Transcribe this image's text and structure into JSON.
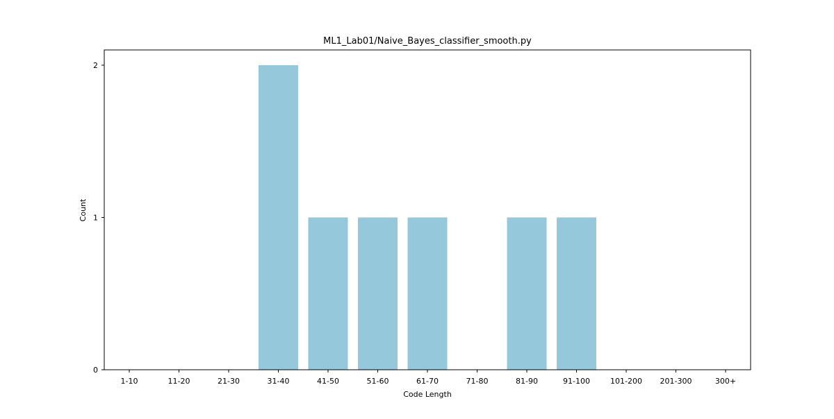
{
  "chart_data": {
    "type": "bar",
    "title": "ML1_Lab01/Naive_Bayes_classifier_smooth.py",
    "xlabel": "Code Length",
    "ylabel": "Count",
    "categories": [
      "1-10",
      "11-20",
      "21-30",
      "31-40",
      "41-50",
      "51-60",
      "61-70",
      "71-80",
      "81-90",
      "91-100",
      "101-200",
      "201-300",
      "300+"
    ],
    "values": [
      0,
      0,
      0,
      2,
      1,
      1,
      1,
      0,
      1,
      1,
      0,
      0,
      0
    ],
    "ylim": [
      0,
      2.1
    ],
    "yticks": [
      0,
      1,
      2
    ],
    "bar_color": "#96c8dc",
    "grid": false,
    "legend": "none"
  }
}
